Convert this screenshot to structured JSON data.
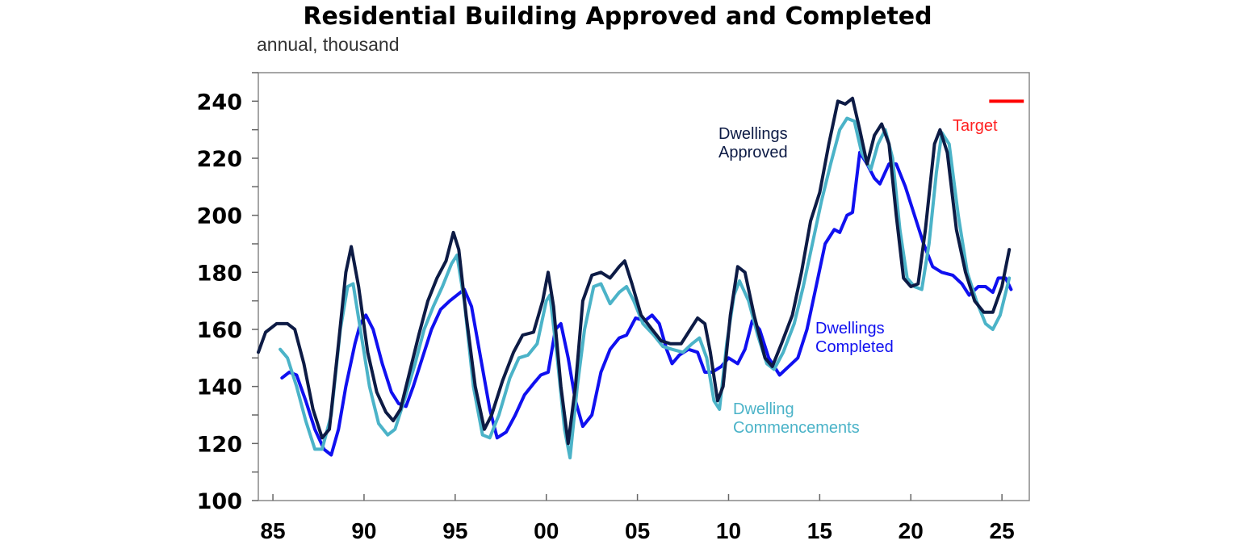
{
  "chart_data": {
    "type": "line",
    "title": "Residential Building Approved and Completed",
    "subtitle": "annual, thousand",
    "xlabel": "",
    "ylabel": "",
    "xlim": [
      1984.2,
      2026.5
    ],
    "ylim": [
      100,
      250
    ],
    "grid": false,
    "y_ticks": [
      100,
      120,
      140,
      160,
      180,
      200,
      220,
      240
    ],
    "x_ticks": [
      1985,
      1990,
      1995,
      2000,
      2005,
      2010,
      2015,
      2020,
      2025
    ],
    "x_tick_labels": [
      "85",
      "90",
      "95",
      "00",
      "05",
      "10",
      "15",
      "20",
      "25"
    ],
    "series": [
      {
        "name": "Dwellings Approved",
        "label_lines": [
          "Dwellings",
          "Approved"
        ],
        "color": "#0d1b45",
        "points": [
          [
            1984.2,
            152
          ],
          [
            1984.6,
            159
          ],
          [
            1985.2,
            162
          ],
          [
            1985.8,
            162
          ],
          [
            1986.2,
            160
          ],
          [
            1986.7,
            148
          ],
          [
            1987.2,
            132
          ],
          [
            1987.7,
            122
          ],
          [
            1988.1,
            125
          ],
          [
            1988.6,
            155
          ],
          [
            1989.0,
            180
          ],
          [
            1989.3,
            189
          ],
          [
            1989.7,
            175
          ],
          [
            1990.2,
            152
          ],
          [
            1990.7,
            138
          ],
          [
            1991.2,
            131
          ],
          [
            1991.6,
            128
          ],
          [
            1992.0,
            132
          ],
          [
            1992.5,
            145
          ],
          [
            1993.0,
            158
          ],
          [
            1993.5,
            170
          ],
          [
            1994.0,
            178
          ],
          [
            1994.5,
            184
          ],
          [
            1994.9,
            194
          ],
          [
            1995.2,
            188
          ],
          [
            1995.6,
            165
          ],
          [
            1996.1,
            140
          ],
          [
            1996.6,
            125
          ],
          [
            1997.0,
            130
          ],
          [
            1997.6,
            142
          ],
          [
            1998.2,
            152
          ],
          [
            1998.7,
            158
          ],
          [
            1999.3,
            159
          ],
          [
            1999.8,
            170
          ],
          [
            2000.1,
            180
          ],
          [
            2000.4,
            168
          ],
          [
            2000.8,
            140
          ],
          [
            2001.2,
            120
          ],
          [
            2001.6,
            140
          ],
          [
            2002.0,
            170
          ],
          [
            2002.5,
            179
          ],
          [
            2003.0,
            180
          ],
          [
            2003.5,
            178
          ],
          [
            2004.0,
            182
          ],
          [
            2004.3,
            184
          ],
          [
            2004.7,
            176
          ],
          [
            2005.2,
            165
          ],
          [
            2005.8,
            160
          ],
          [
            2006.3,
            156
          ],
          [
            2006.8,
            155
          ],
          [
            2007.4,
            155
          ],
          [
            2007.9,
            160
          ],
          [
            2008.3,
            164
          ],
          [
            2008.7,
            162
          ],
          [
            2009.0,
            152
          ],
          [
            2009.4,
            135
          ],
          [
            2009.7,
            140
          ],
          [
            2010.1,
            165
          ],
          [
            2010.5,
            182
          ],
          [
            2010.9,
            180
          ],
          [
            2011.4,
            165
          ],
          [
            2012.0,
            150
          ],
          [
            2012.4,
            147
          ],
          [
            2012.9,
            155
          ],
          [
            2013.5,
            165
          ],
          [
            2014.0,
            180
          ],
          [
            2014.5,
            198
          ],
          [
            2015.0,
            208
          ],
          [
            2015.5,
            225
          ],
          [
            2016.0,
            240
          ],
          [
            2016.4,
            239
          ],
          [
            2016.8,
            241
          ],
          [
            2017.2,
            230
          ],
          [
            2017.6,
            218
          ],
          [
            2018.0,
            228
          ],
          [
            2018.4,
            232
          ],
          [
            2018.8,
            225
          ],
          [
            2019.2,
            200
          ],
          [
            2019.6,
            178
          ],
          [
            2020.0,
            175
          ],
          [
            2020.4,
            176
          ],
          [
            2020.8,
            195
          ],
          [
            2021.3,
            225
          ],
          [
            2021.6,
            230
          ],
          [
            2022.0,
            222
          ],
          [
            2022.5,
            195
          ],
          [
            2023.0,
            180
          ],
          [
            2023.5,
            170
          ],
          [
            2024.0,
            166
          ],
          [
            2024.5,
            166
          ],
          [
            2025.0,
            175
          ],
          [
            2025.4,
            188
          ]
        ]
      },
      {
        "name": "Dwelling Commencements",
        "label_lines": [
          "Dwelling",
          "Commencements"
        ],
        "color": "#4bb3c8",
        "points": [
          [
            1985.4,
            153
          ],
          [
            1985.8,
            150
          ],
          [
            1986.3,
            140
          ],
          [
            1986.8,
            128
          ],
          [
            1987.3,
            118
          ],
          [
            1987.7,
            118
          ],
          [
            1988.2,
            130
          ],
          [
            1988.7,
            160
          ],
          [
            1989.1,
            175
          ],
          [
            1989.4,
            176
          ],
          [
            1989.8,
            160
          ],
          [
            1990.3,
            140
          ],
          [
            1990.8,
            127
          ],
          [
            1991.3,
            123
          ],
          [
            1991.7,
            125
          ],
          [
            1992.2,
            135
          ],
          [
            1992.8,
            148
          ],
          [
            1993.3,
            160
          ],
          [
            1993.8,
            168
          ],
          [
            1994.3,
            175
          ],
          [
            1994.8,
            183
          ],
          [
            1995.1,
            186
          ],
          [
            1995.5,
            170
          ],
          [
            1996.0,
            140
          ],
          [
            1996.5,
            123
          ],
          [
            1996.9,
            122
          ],
          [
            1997.4,
            130
          ],
          [
            1998.0,
            143
          ],
          [
            1998.5,
            150
          ],
          [
            1999.0,
            151
          ],
          [
            1999.5,
            155
          ],
          [
            2000.0,
            170
          ],
          [
            2000.2,
            172
          ],
          [
            2000.6,
            150
          ],
          [
            2001.0,
            125
          ],
          [
            2001.3,
            115
          ],
          [
            2001.7,
            140
          ],
          [
            2002.1,
            160
          ],
          [
            2002.6,
            175
          ],
          [
            2003.0,
            176
          ],
          [
            2003.5,
            169
          ],
          [
            2004.0,
            173
          ],
          [
            2004.4,
            175
          ],
          [
            2004.8,
            170
          ],
          [
            2005.3,
            162
          ],
          [
            2005.9,
            158
          ],
          [
            2006.4,
            154
          ],
          [
            2006.9,
            153
          ],
          [
            2007.5,
            152
          ],
          [
            2008.0,
            155
          ],
          [
            2008.4,
            157
          ],
          [
            2008.8,
            150
          ],
          [
            2009.2,
            135
          ],
          [
            2009.5,
            132
          ],
          [
            2009.9,
            155
          ],
          [
            2010.3,
            172
          ],
          [
            2010.6,
            177
          ],
          [
            2011.1,
            170
          ],
          [
            2011.6,
            158
          ],
          [
            2012.1,
            148
          ],
          [
            2012.5,
            146
          ],
          [
            2013.0,
            152
          ],
          [
            2013.6,
            162
          ],
          [
            2014.1,
            175
          ],
          [
            2014.6,
            190
          ],
          [
            2015.1,
            205
          ],
          [
            2015.6,
            218
          ],
          [
            2016.1,
            230
          ],
          [
            2016.5,
            234
          ],
          [
            2016.9,
            233
          ],
          [
            2017.3,
            222
          ],
          [
            2017.8,
            216
          ],
          [
            2018.2,
            225
          ],
          [
            2018.6,
            230
          ],
          [
            2019.0,
            220
          ],
          [
            2019.4,
            195
          ],
          [
            2019.8,
            178
          ],
          [
            2020.2,
            175
          ],
          [
            2020.6,
            174
          ],
          [
            2021.0,
            190
          ],
          [
            2021.4,
            215
          ],
          [
            2021.7,
            229
          ],
          [
            2022.1,
            225
          ],
          [
            2022.6,
            200
          ],
          [
            2023.1,
            180
          ],
          [
            2023.6,
            170
          ],
          [
            2024.1,
            162
          ],
          [
            2024.5,
            160
          ],
          [
            2024.9,
            165
          ],
          [
            2025.4,
            178
          ]
        ]
      },
      {
        "name": "Dwellings Completed",
        "label_lines": [
          "Dwellings",
          "Completed"
        ],
        "color": "#1010f0",
        "points": [
          [
            1985.5,
            143
          ],
          [
            1985.9,
            145
          ],
          [
            1986.3,
            144
          ],
          [
            1986.8,
            135
          ],
          [
            1987.3,
            125
          ],
          [
            1987.8,
            118
          ],
          [
            1988.2,
            116
          ],
          [
            1988.6,
            125
          ],
          [
            1989.0,
            140
          ],
          [
            1989.5,
            155
          ],
          [
            1989.8,
            162
          ],
          [
            1990.1,
            165
          ],
          [
            1990.5,
            160
          ],
          [
            1991.0,
            148
          ],
          [
            1991.5,
            138
          ],
          [
            1991.9,
            134
          ],
          [
            1992.3,
            133
          ],
          [
            1992.7,
            140
          ],
          [
            1993.2,
            150
          ],
          [
            1993.7,
            160
          ],
          [
            1994.2,
            167
          ],
          [
            1994.7,
            170
          ],
          [
            1995.1,
            172
          ],
          [
            1995.5,
            174
          ],
          [
            1995.9,
            168
          ],
          [
            1996.4,
            150
          ],
          [
            1996.9,
            132
          ],
          [
            1997.3,
            122
          ],
          [
            1997.8,
            124
          ],
          [
            1998.3,
            130
          ],
          [
            1998.8,
            137
          ],
          [
            1999.3,
            141
          ],
          [
            1999.7,
            144
          ],
          [
            2000.1,
            145
          ],
          [
            2000.5,
            160
          ],
          [
            2000.8,
            162
          ],
          [
            2001.2,
            150
          ],
          [
            2001.6,
            135
          ],
          [
            2002.0,
            126
          ],
          [
            2002.5,
            130
          ],
          [
            2003.0,
            145
          ],
          [
            2003.5,
            153
          ],
          [
            2004.0,
            157
          ],
          [
            2004.4,
            158
          ],
          [
            2004.9,
            164
          ],
          [
            2005.4,
            163
          ],
          [
            2005.8,
            165
          ],
          [
            2006.2,
            162
          ],
          [
            2006.6,
            153
          ],
          [
            2006.9,
            148
          ],
          [
            2007.3,
            151
          ],
          [
            2007.8,
            153
          ],
          [
            2008.3,
            152
          ],
          [
            2008.7,
            145
          ],
          [
            2009.1,
            145
          ],
          [
            2009.6,
            147
          ],
          [
            2010.0,
            150
          ],
          [
            2010.5,
            148
          ],
          [
            2010.9,
            153
          ],
          [
            2011.3,
            163
          ],
          [
            2011.7,
            160
          ],
          [
            2012.2,
            150
          ],
          [
            2012.8,
            144
          ],
          [
            2013.3,
            147
          ],
          [
            2013.8,
            150
          ],
          [
            2014.3,
            160
          ],
          [
            2014.8,
            175
          ],
          [
            2015.3,
            190
          ],
          [
            2015.8,
            195
          ],
          [
            2016.1,
            194
          ],
          [
            2016.5,
            200
          ],
          [
            2016.8,
            201
          ],
          [
            2017.2,
            222
          ],
          [
            2017.6,
            218
          ],
          [
            2018.0,
            213
          ],
          [
            2018.3,
            211
          ],
          [
            2018.8,
            218
          ],
          [
            2019.2,
            218
          ],
          [
            2019.7,
            210
          ],
          [
            2020.2,
            200
          ],
          [
            2020.7,
            190
          ],
          [
            2021.2,
            182
          ],
          [
            2021.7,
            180
          ],
          [
            2022.3,
            179
          ],
          [
            2022.8,
            176
          ],
          [
            2023.2,
            172
          ],
          [
            2023.7,
            175
          ],
          [
            2024.1,
            175
          ],
          [
            2024.5,
            173
          ],
          [
            2024.8,
            178
          ],
          [
            2025.2,
            178
          ],
          [
            2025.5,
            174
          ]
        ]
      }
    ],
    "target": {
      "name": "Target",
      "color": "#ff0000",
      "value": 240,
      "x_range": [
        2024.3,
        2026.2
      ]
    }
  }
}
